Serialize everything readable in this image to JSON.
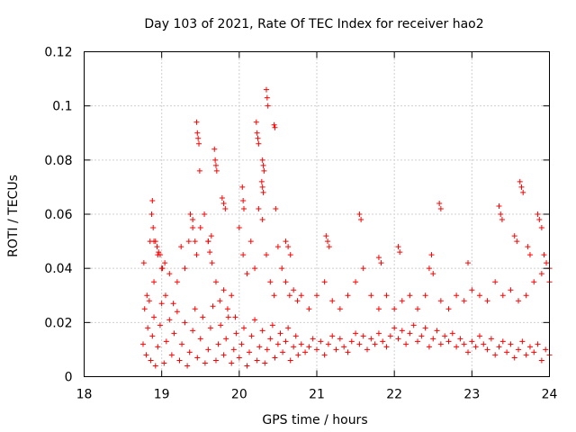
{
  "chart_data": {
    "type": "scatter",
    "title": "Day 103 of 2021, Rate Of TEC Index for receiver hao2",
    "xlabel": "GPS time / hours",
    "ylabel": "ROTI / TECUs",
    "xlim": [
      18,
      24
    ],
    "ylim": [
      0,
      0.12
    ],
    "xticks": [
      18,
      19,
      20,
      21,
      22,
      23,
      24
    ],
    "yticks": [
      0,
      0.02,
      0.04,
      0.06,
      0.08,
      0.1,
      0.12
    ],
    "xtick_labels": [
      "18",
      "19",
      "20",
      "21",
      "22",
      "23",
      "24"
    ],
    "ytick_labels": [
      "0",
      "0.02",
      "0.04",
      "0.06",
      "0.08",
      "0.1",
      "0.12"
    ],
    "grid": true,
    "marker": "+",
    "color": "#ff0000",
    "series": [
      {
        "x": [
          18.76,
          18.78,
          18.8,
          18.82,
          18.84,
          18.86,
          18.88,
          18.9,
          18.92,
          18.95,
          18.98,
          19.0,
          19.03,
          19.06,
          19.1,
          19.13,
          19.16,
          19.2,
          19.23,
          19.26,
          19.3,
          19.33,
          19.36,
          19.4,
          19.43,
          19.46,
          19.5,
          19.53,
          19.56,
          19.6,
          19.63,
          19.66,
          19.7,
          19.73,
          19.76,
          19.8,
          19.83,
          19.86,
          19.9,
          19.93,
          19.96,
          20.0,
          20.03,
          20.06,
          20.1,
          20.13,
          20.16,
          20.2,
          20.23,
          20.26,
          20.3,
          20.33,
          20.36,
          20.4,
          20.43,
          20.46,
          20.5,
          20.53,
          20.56,
          20.6,
          20.63,
          20.66,
          20.7,
          20.73,
          20.76,
          20.8,
          20.85,
          20.9,
          20.95,
          21.0,
          21.05,
          21.1,
          21.15,
          21.2,
          21.25,
          21.3,
          21.35,
          21.4,
          21.45,
          21.5,
          21.55,
          21.6,
          21.65,
          21.7,
          21.75,
          21.8,
          21.85,
          21.9,
          21.95,
          22.0,
          22.05,
          22.1,
          22.15,
          22.2,
          22.25,
          22.3,
          22.35,
          22.4,
          22.45,
          22.5,
          22.55,
          22.6,
          22.65,
          22.7,
          22.75,
          22.8,
          22.85,
          22.9,
          22.95,
          23.0,
          23.05,
          23.1,
          23.15,
          23.2,
          23.25,
          23.3,
          23.35,
          23.4,
          23.45,
          23.5,
          23.55,
          23.6,
          23.65,
          23.7,
          23.75,
          23.8,
          23.85,
          23.9,
          23.95,
          24.0,
          18.77,
          18.81,
          18.85,
          18.9,
          18.95,
          19.0,
          19.05,
          19.1,
          19.15,
          19.2,
          19.25,
          19.3,
          19.35,
          19.4,
          19.45,
          19.5,
          19.55,
          19.6,
          19.65,
          19.7,
          19.75,
          19.8,
          19.85,
          19.9,
          19.95,
          20.0,
          20.05,
          20.1,
          20.15,
          20.2,
          20.25,
          20.3,
          20.35,
          20.4,
          20.45,
          20.5,
          20.55,
          20.6,
          20.65,
          20.7,
          20.75,
          20.8,
          20.9,
          21.0,
          21.1,
          21.2,
          21.3,
          21.4,
          21.5,
          21.6,
          21.7,
          21.8,
          21.9,
          22.0,
          22.1,
          22.2,
          22.3,
          22.4,
          22.5,
          22.6,
          22.7,
          22.8,
          22.9,
          23.0,
          23.1,
          23.2,
          23.3,
          23.4,
          23.5,
          23.6,
          23.7,
          23.8,
          23.9,
          24.0,
          18.87,
          18.88,
          18.89,
          18.9,
          19.45,
          19.46,
          19.47,
          19.48,
          19.49,
          19.68,
          19.69,
          19.7,
          19.71,
          20.22,
          20.23,
          20.24,
          20.25,
          20.3,
          20.31,
          20.32,
          20.35,
          20.36,
          20.37,
          20.45,
          20.46,
          20.47,
          20.04,
          20.05,
          20.06,
          19.78,
          19.8,
          19.82,
          21.12,
          21.14,
          21.16,
          21.55,
          21.57,
          22.05,
          22.07,
          22.58,
          22.6,
          23.35,
          23.37,
          23.39,
          23.62,
          23.64,
          23.66,
          23.85,
          23.87,
          24.0,
          19.6,
          19.62,
          19.64,
          20.29,
          20.3,
          20.31,
          19.37,
          19.4,
          19.43,
          18.98,
          19.01,
          19.04,
          18.92,
          18.94,
          18.96,
          20.6,
          20.63,
          20.66,
          21.8,
          21.83,
          22.45,
          22.48,
          22.95,
          23.55,
          23.58,
          23.72,
          23.75,
          23.9,
          23.93,
          23.96
        ],
        "y": [
          0.012,
          0.025,
          0.008,
          0.018,
          0.028,
          0.006,
          0.015,
          0.022,
          0.004,
          0.011,
          0.019,
          0.027,
          0.005,
          0.013,
          0.021,
          0.008,
          0.016,
          0.024,
          0.006,
          0.012,
          0.02,
          0.004,
          0.009,
          0.017,
          0.025,
          0.007,
          0.014,
          0.022,
          0.005,
          0.01,
          0.018,
          0.026,
          0.006,
          0.012,
          0.019,
          0.008,
          0.014,
          0.022,
          0.005,
          0.01,
          0.016,
          0.007,
          0.012,
          0.018,
          0.004,
          0.009,
          0.015,
          0.021,
          0.006,
          0.011,
          0.017,
          0.005,
          0.01,
          0.014,
          0.019,
          0.007,
          0.012,
          0.016,
          0.009,
          0.013,
          0.018,
          0.006,
          0.011,
          0.015,
          0.008,
          0.012,
          0.009,
          0.011,
          0.014,
          0.01,
          0.013,
          0.008,
          0.012,
          0.015,
          0.01,
          0.014,
          0.011,
          0.009,
          0.013,
          0.016,
          0.012,
          0.015,
          0.01,
          0.014,
          0.012,
          0.016,
          0.013,
          0.011,
          0.015,
          0.018,
          0.014,
          0.017,
          0.012,
          0.016,
          0.019,
          0.013,
          0.015,
          0.018,
          0.011,
          0.014,
          0.017,
          0.012,
          0.015,
          0.013,
          0.016,
          0.011,
          0.014,
          0.012,
          0.009,
          0.013,
          0.011,
          0.015,
          0.012,
          0.01,
          0.014,
          0.008,
          0.011,
          0.013,
          0.009,
          0.012,
          0.007,
          0.01,
          0.013,
          0.008,
          0.011,
          0.009,
          0.012,
          0.006,
          0.01,
          0.008,
          0.042,
          0.03,
          0.05,
          0.035,
          0.045,
          0.04,
          0.03,
          0.038,
          0.027,
          0.035,
          0.048,
          0.04,
          0.05,
          0.058,
          0.045,
          0.055,
          0.06,
          0.05,
          0.042,
          0.035,
          0.028,
          0.032,
          0.025,
          0.03,
          0.022,
          0.055,
          0.045,
          0.038,
          0.05,
          0.04,
          0.062,
          0.058,
          0.045,
          0.035,
          0.03,
          0.048,
          0.04,
          0.035,
          0.03,
          0.032,
          0.028,
          0.03,
          0.025,
          0.03,
          0.035,
          0.028,
          0.025,
          0.03,
          0.035,
          0.04,
          0.03,
          0.025,
          0.03,
          0.025,
          0.028,
          0.03,
          0.025,
          0.03,
          0.038,
          0.028,
          0.025,
          0.03,
          0.028,
          0.032,
          0.03,
          0.028,
          0.035,
          0.03,
          0.032,
          0.028,
          0.03,
          0.035,
          0.038,
          0.035,
          0.06,
          0.065,
          0.055,
          0.05,
          0.094,
          0.09,
          0.088,
          0.086,
          0.076,
          0.084,
          0.08,
          0.078,
          0.076,
          0.094,
          0.09,
          0.088,
          0.086,
          0.08,
          0.078,
          0.076,
          0.106,
          0.103,
          0.1,
          0.093,
          0.092,
          0.062,
          0.07,
          0.065,
          0.062,
          0.066,
          0.064,
          0.062,
          0.052,
          0.05,
          0.048,
          0.06,
          0.058,
          0.048,
          0.046,
          0.064,
          0.062,
          0.063,
          0.06,
          0.058,
          0.072,
          0.07,
          0.068,
          0.06,
          0.058,
          0.04,
          0.05,
          0.046,
          0.052,
          0.072,
          0.07,
          0.068,
          0.06,
          0.055,
          0.05,
          0.045,
          0.04,
          0.042,
          0.05,
          0.048,
          0.046,
          0.05,
          0.048,
          0.045,
          0.044,
          0.042,
          0.04,
          0.045,
          0.042,
          0.052,
          0.05,
          0.048,
          0.045,
          0.055,
          0.045,
          0.042
        ]
      }
    ]
  }
}
